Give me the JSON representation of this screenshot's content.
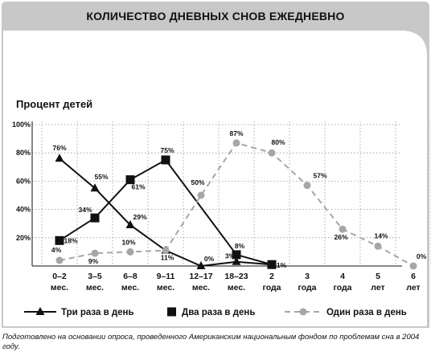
{
  "title": "КОЛИЧЕСТВО ДНЕВНЫХ СНОВ ЕЖЕДНЕВНО",
  "source_note": "Подготовлено на основании опроса, проведенного Американским национальным фондом по проблемам сна в 2004 году.",
  "colors": {
    "panel_bg": "#c8c8c8",
    "series_solid": "#111111",
    "series_gray": "#a6a6a6"
  },
  "chart_data": {
    "type": "line",
    "ylabel": "Процент детей",
    "xlabel": "",
    "ylim": [
      0,
      100
    ],
    "yticks": [
      "20%",
      "40%",
      "60%",
      "80%",
      "100%"
    ],
    "ytick_values": [
      20,
      40,
      60,
      80,
      100
    ],
    "categories": [
      [
        "0–2",
        "мес."
      ],
      [
        "3–5",
        "мес."
      ],
      [
        "6–8",
        "мес."
      ],
      [
        "9–11",
        "мес."
      ],
      [
        "12–17",
        "мес."
      ],
      [
        "18–23",
        "мес."
      ],
      [
        "2",
        "года"
      ],
      [
        "3",
        "года"
      ],
      [
        "4",
        "года"
      ],
      [
        "5",
        "лет"
      ],
      [
        "6",
        "лет"
      ]
    ],
    "series": [
      {
        "name": "Три раза в день",
        "marker": "triangle",
        "line": "solid",
        "values": [
          76,
          55,
          29,
          11,
          0,
          3,
          1,
          null,
          null,
          null,
          null
        ],
        "labels": [
          "76%",
          "55%",
          "29%",
          "11%",
          "0%",
          "3%",
          "1%",
          null,
          null,
          null,
          null
        ]
      },
      {
        "name": "Два раза в день",
        "marker": "square",
        "line": "solid",
        "values": [
          18,
          34,
          61,
          75,
          null,
          8,
          1,
          null,
          null,
          null,
          null
        ],
        "labels": [
          "18%",
          "34%",
          "61%",
          "75%",
          null,
          "8%",
          null,
          null,
          null,
          null,
          null
        ]
      },
      {
        "name": "Один раза в день",
        "marker": "circle",
        "line": "dashed",
        "values": [
          4,
          9,
          10,
          11,
          50,
          87,
          80,
          57,
          26,
          14,
          0
        ],
        "labels": [
          "4%",
          "9%",
          "10%",
          null,
          "50%",
          "87%",
          "80%",
          "57%",
          "26%",
          "14%",
          "0%"
        ]
      }
    ],
    "legend_position": "bottom"
  }
}
